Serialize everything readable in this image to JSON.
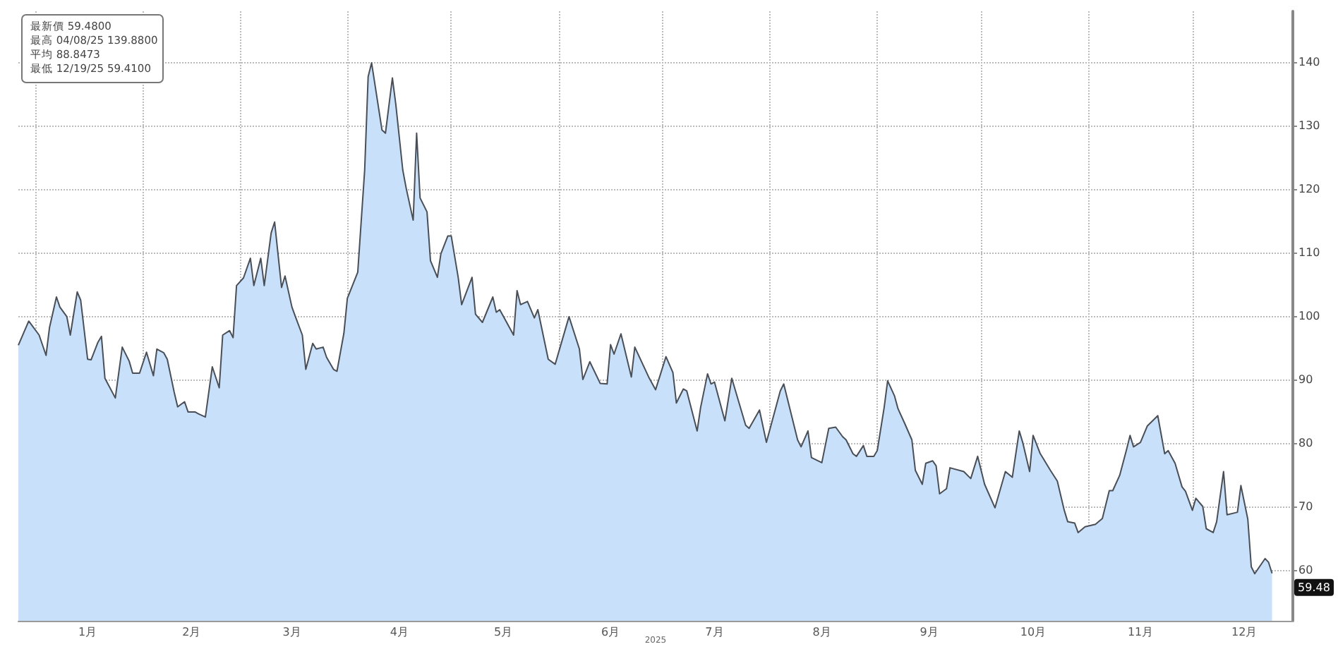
{
  "chart_data": {
    "type": "area",
    "annotations": [
      "最新價 59.4800",
      "最高 04/08/25 139.8800",
      "平均 88.8473",
      "最低 12/19/25 59.4100",
      "2025",
      {
        "text": "59.48",
        "x": "2025-12-24",
        "y": 59.48
      }
    ],
    "x": [
      "2024-12-27",
      "2024-12-30",
      "2025-01-02",
      "2025-01-04",
      "2025-01-05",
      "2025-01-07",
      "2025-01-08",
      "2025-01-10",
      "2025-01-11",
      "2025-01-13",
      "2025-01-14",
      "2025-01-16",
      "2025-01-17",
      "2025-01-19",
      "2025-01-20",
      "2025-01-21",
      "2025-01-24",
      "2025-01-26",
      "2025-01-28",
      "2025-01-29",
      "2025-01-31",
      "2025-02-02",
      "2025-02-04",
      "2025-02-05",
      "2025-02-07",
      "2025-02-08",
      "2025-02-10",
      "2025-02-11",
      "2025-02-13",
      "2025-02-14",
      "2025-02-16",
      "2025-02-17",
      "2025-02-19",
      "2025-02-21",
      "2025-02-23",
      "2025-02-24",
      "2025-02-26",
      "2025-02-27",
      "2025-02-28",
      "2025-03-02",
      "2025-03-04",
      "2025-03-05",
      "2025-03-07",
      "2025-03-08",
      "2025-03-10",
      "2025-03-11",
      "2025-03-13",
      "2025-03-14",
      "2025-03-16",
      "2025-03-17",
      "2025-03-19",
      "2025-03-20",
      "2025-03-22",
      "2025-03-23",
      "2025-03-25",
      "2025-03-26",
      "2025-03-28",
      "2025-03-29",
      "2025-03-31",
      "2025-04-01",
      "2025-04-04",
      "2025-04-06",
      "2025-04-07",
      "2025-04-08",
      "2025-04-11",
      "2025-04-12",
      "2025-04-14",
      "2025-04-15",
      "2025-04-17",
      "2025-04-18",
      "2025-04-20",
      "2025-04-21",
      "2025-04-22",
      "2025-04-24",
      "2025-04-25",
      "2025-04-27",
      "2025-04-28",
      "2025-04-30",
      "2025-05-01",
      "2025-05-03",
      "2025-05-04",
      "2025-05-07",
      "2025-05-08",
      "2025-05-10",
      "2025-05-13",
      "2025-05-14",
      "2025-05-15",
      "2025-05-19",
      "2025-05-20",
      "2025-05-21",
      "2025-05-23",
      "2025-05-25",
      "2025-05-26",
      "2025-05-29",
      "2025-05-31",
      "2025-06-04",
      "2025-06-07",
      "2025-06-08",
      "2025-06-10",
      "2025-06-13",
      "2025-06-15",
      "2025-06-16",
      "2025-06-17",
      "2025-06-19",
      "2025-06-22",
      "2025-06-23",
      "2025-06-27",
      "2025-06-29",
      "2025-07-02",
      "2025-07-04",
      "2025-07-05",
      "2025-07-07",
      "2025-07-08",
      "2025-07-11",
      "2025-07-12",
      "2025-07-14",
      "2025-07-15",
      "2025-07-16",
      "2025-07-19",
      "2025-07-21",
      "2025-07-25",
      "2025-07-26",
      "2025-07-29",
      "2025-07-31",
      "2025-08-04",
      "2025-08-05",
      "2025-08-09",
      "2025-08-10",
      "2025-08-12",
      "2025-08-13",
      "2025-08-16",
      "2025-08-18",
      "2025-08-20",
      "2025-08-22",
      "2025-08-23",
      "2025-08-25",
      "2025-08-26",
      "2025-08-28",
      "2025-08-29",
      "2025-08-31",
      "2025-09-01",
      "2025-09-03",
      "2025-09-04",
      "2025-09-06",
      "2025-09-07",
      "2025-09-09",
      "2025-09-11",
      "2025-09-12",
      "2025-09-14",
      "2025-09-15",
      "2025-09-17",
      "2025-09-18",
      "2025-09-19",
      "2025-09-21",
      "2025-09-22",
      "2025-09-26",
      "2025-09-28",
      "2025-09-30",
      "2025-10-02",
      "2025-10-05",
      "2025-10-08",
      "2025-10-10",
      "2025-10-12",
      "2025-10-13",
      "2025-10-15",
      "2025-10-16",
      "2025-10-18",
      "2025-10-19",
      "2025-10-21",
      "2025-10-23",
      "2025-10-25",
      "2025-10-26",
      "2025-10-28",
      "2025-10-29",
      "2025-10-31",
      "2025-11-03",
      "2025-11-05",
      "2025-11-07",
      "2025-11-08",
      "2025-11-10",
      "2025-11-12",
      "2025-11-13",
      "2025-11-14",
      "2025-11-16",
      "2025-11-18",
      "2025-11-21",
      "2025-11-23",
      "2025-11-24",
      "2025-11-26",
      "2025-11-28",
      "2025-11-29",
      "2025-12-01",
      "2025-12-02",
      "2025-12-04",
      "2025-12-05",
      "2025-12-07",
      "2025-12-08",
      "2025-12-10",
      "2025-12-11",
      "2025-12-14",
      "2025-12-15",
      "2025-12-17",
      "2025-12-18",
      "2025-12-19",
      "2025-12-22",
      "2025-12-23",
      "2025-12-24"
    ],
    "series": [
      {
        "color": "#c8e0fa",
        "values": [
          95.4,
          99.2,
          97.0,
          93.8,
          98.2,
          103.0,
          101.4,
          99.9,
          97.0,
          103.8,
          102.5,
          93.2,
          93.1,
          95.9,
          96.8,
          90.2,
          87.1,
          95.1,
          92.9,
          91.0,
          91.0,
          94.3,
          90.6,
          94.8,
          94.2,
          93.2,
          88.0,
          85.7,
          86.5,
          84.9,
          84.9,
          84.6,
          84.1,
          92.0,
          88.7,
          97.0,
          97.7,
          96.6,
          104.8,
          106.0,
          109.1,
          104.8,
          109.1,
          104.8,
          113.1,
          114.8,
          104.5,
          106.3,
          101.4,
          99.9,
          97.0,
          91.6,
          95.7,
          94.8,
          95.1,
          93.5,
          91.6,
          91.3,
          97.3,
          102.8,
          106.9,
          123.0,
          137.7,
          139.88,
          129.3,
          128.8,
          137.5,
          133.3,
          123.0,
          120.1,
          115.1,
          128.8,
          118.6,
          116.4,
          108.7,
          106.1,
          109.8,
          112.6,
          112.6,
          106.1,
          101.8,
          106.1,
          100.3,
          99.0,
          103.0,
          100.6,
          101.0,
          97.0,
          104.0,
          101.8,
          102.3,
          99.7,
          101.0,
          93.2,
          92.4,
          99.9,
          94.8,
          90.0,
          92.8,
          89.4,
          89.3,
          95.5,
          94.0,
          97.2,
          90.4,
          95.1,
          90.4,
          88.4,
          93.6,
          91.1,
          86.3,
          88.5,
          88.2,
          81.9,
          85.6,
          90.9,
          89.3,
          89.6,
          83.5,
          90.2,
          82.8,
          82.3,
          85.2,
          80.1,
          88.2,
          89.3,
          80.5,
          79.4,
          81.9,
          77.7,
          76.9,
          82.3,
          82.5,
          81.0,
          80.5,
          78.3,
          77.9,
          79.6,
          77.9,
          77.9,
          78.8,
          85.6,
          89.8,
          87.4,
          85.4,
          83.0,
          80.5,
          75.7,
          73.5,
          76.8,
          77.2,
          76.4,
          72.0,
          72.8,
          76.1,
          75.5,
          74.4,
          77.9,
          73.5,
          69.8,
          75.5,
          74.6,
          81.9,
          80.1,
          75.5,
          81.2,
          78.4,
          77.5,
          75.7,
          74.0,
          69.4,
          67.6,
          67.4,
          65.9,
          66.8,
          67.2,
          68.1,
          72.5,
          72.5,
          74.9,
          79.0,
          81.2,
          79.4,
          80.1,
          82.7,
          84.3,
          78.3,
          78.8,
          76.8,
          73.1,
          72.4,
          69.4,
          71.3,
          70.0,
          66.5,
          65.9,
          67.6,
          75.5,
          68.7,
          69.1,
          73.3,
          68.0,
          60.5,
          59.41,
          61.8,
          61.2,
          59.48
        ]
      }
    ],
    "xlim": [
      "2024-12-27",
      "2025-12-30"
    ],
    "xticks": [
      {
        "value": "2025-01-01",
        "label": null
      },
      {
        "value": "2025-01-16",
        "label": "1月"
      },
      {
        "value": "2025-02-01",
        "label": null
      },
      {
        "value": "2025-02-15",
        "label": "2月"
      },
      {
        "value": "2025-03-01",
        "label": null
      },
      {
        "value": "2025-03-16",
        "label": "3月"
      },
      {
        "value": "2025-04-01",
        "label": null
      },
      {
        "value": "2025-04-16",
        "label": "4月"
      },
      {
        "value": "2025-05-01",
        "label": null
      },
      {
        "value": "2025-05-16",
        "label": "5月"
      },
      {
        "value": "2025-06-01",
        "label": null
      },
      {
        "value": "2025-06-16",
        "label": "6月"
      },
      {
        "value": "2025-07-01",
        "label": null
      },
      {
        "value": "2025-07-16",
        "label": "7月"
      },
      {
        "value": "2025-08-01",
        "label": null
      },
      {
        "value": "2025-08-16",
        "label": "8月"
      },
      {
        "value": "2025-09-01",
        "label": null
      },
      {
        "value": "2025-09-16",
        "label": "9月"
      },
      {
        "value": "2025-10-01",
        "label": null
      },
      {
        "value": "2025-10-16",
        "label": "10月"
      },
      {
        "value": "2025-11-01",
        "label": null
      },
      {
        "value": "2025-11-16",
        "label": "11月"
      },
      {
        "value": "2025-12-01",
        "label": null
      },
      {
        "value": "2025-12-16",
        "label": "12月"
      }
    ],
    "ylim": [
      52,
      148
    ],
    "yticks": [
      60,
      70,
      80,
      90,
      100,
      110,
      120,
      130,
      140
    ],
    "grid": true
  }
}
